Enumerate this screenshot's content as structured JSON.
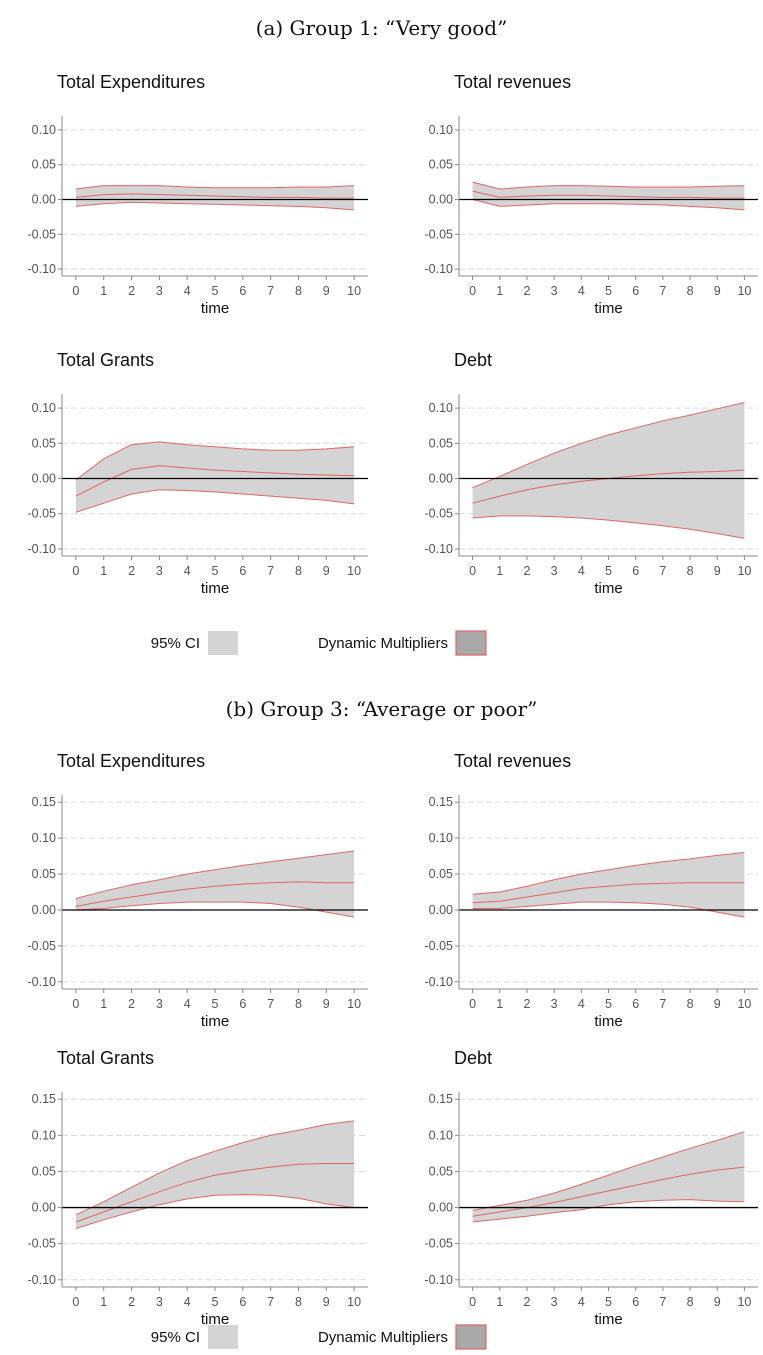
{
  "groups": [
    {
      "caption": "(a) Group 1: “Very good”",
      "legend": {
        "ci_label": "95% CI",
        "multiplier_label": "Dynamic Multipliers",
        "ci_fill": "#d4d4d4",
        "multiplier_fill": "#a9a9a9",
        "line_color": "#e06666"
      }
    },
    {
      "caption": "(b) Group 3: “Average or poor”",
      "legend": {
        "ci_label": "95% CI",
        "multiplier_label": "Dynamic Multipliers",
        "ci_fill": "#d4d4d4",
        "multiplier_fill": "#a9a9a9",
        "line_color": "#e06666"
      }
    }
  ],
  "chart_data": [
    {
      "type": "area",
      "group": 0,
      "title": "Total Expenditures",
      "xlabel": "time",
      "ylabel": "",
      "x": [
        0,
        1,
        2,
        3,
        4,
        5,
        6,
        7,
        8,
        9,
        10
      ],
      "yticks": [
        "0.10",
        "0.05",
        "0.00",
        "-0.05",
        "-0.10"
      ],
      "ylim": [
        -0.11,
        0.12
      ],
      "grid": true,
      "upper": [
        0.015,
        0.02,
        0.02,
        0.02,
        0.018,
        0.017,
        0.017,
        0.017,
        0.018,
        0.018,
        0.02
      ],
      "mean": [
        0.003,
        0.007,
        0.008,
        0.007,
        0.006,
        0.005,
        0.004,
        0.003,
        0.003,
        0.002,
        0.002
      ],
      "lower": [
        -0.01,
        -0.006,
        -0.004,
        -0.005,
        -0.006,
        -0.007,
        -0.008,
        -0.009,
        -0.01,
        -0.012,
        -0.015
      ]
    },
    {
      "type": "area",
      "group": 0,
      "title": "Total revenues",
      "xlabel": "time",
      "ylabel": "",
      "x": [
        0,
        1,
        2,
        3,
        4,
        5,
        6,
        7,
        8,
        9,
        10
      ],
      "yticks": [
        "0.10",
        "0.05",
        "0.00",
        "-0.05",
        "-0.10"
      ],
      "ylim": [
        -0.11,
        0.12
      ],
      "grid": true,
      "upper": [
        0.025,
        0.015,
        0.018,
        0.02,
        0.02,
        0.019,
        0.018,
        0.018,
        0.018,
        0.019,
        0.02
      ],
      "mean": [
        0.012,
        0.003,
        0.005,
        0.006,
        0.006,
        0.005,
        0.004,
        0.003,
        0.003,
        0.002,
        0.002
      ],
      "lower": [
        0.0,
        -0.01,
        -0.008,
        -0.006,
        -0.006,
        -0.006,
        -0.007,
        -0.008,
        -0.01,
        -0.012,
        -0.015
      ]
    },
    {
      "type": "area",
      "group": 0,
      "title": "Total Grants",
      "xlabel": "time",
      "ylabel": "",
      "x": [
        0,
        1,
        2,
        3,
        4,
        5,
        6,
        7,
        8,
        9,
        10
      ],
      "yticks": [
        "0.10",
        "0.05",
        "0.00",
        "-0.05",
        "-0.10"
      ],
      "ylim": [
        -0.11,
        0.12
      ],
      "grid": true,
      "upper": [
        -0.002,
        0.028,
        0.048,
        0.052,
        0.048,
        0.045,
        0.042,
        0.04,
        0.04,
        0.042,
        0.045
      ],
      "mean": [
        -0.025,
        -0.005,
        0.013,
        0.018,
        0.015,
        0.012,
        0.01,
        0.008,
        0.006,
        0.005,
        0.004
      ],
      "lower": [
        -0.048,
        -0.035,
        -0.022,
        -0.016,
        -0.017,
        -0.019,
        -0.022,
        -0.025,
        -0.028,
        -0.031,
        -0.036
      ]
    },
    {
      "type": "area",
      "group": 0,
      "title": "Debt",
      "xlabel": "time",
      "ylabel": "",
      "x": [
        0,
        1,
        2,
        3,
        4,
        5,
        6,
        7,
        8,
        9,
        10
      ],
      "yticks": [
        "0.10",
        "0.05",
        "0.00",
        "-0.05",
        "-0.10"
      ],
      "ylim": [
        -0.11,
        0.12
      ],
      "grid": true,
      "upper": [
        -0.013,
        0.003,
        0.02,
        0.036,
        0.05,
        0.062,
        0.072,
        0.082,
        0.09,
        0.099,
        0.108
      ],
      "mean": [
        -0.035,
        -0.025,
        -0.016,
        -0.009,
        -0.004,
        0.0,
        0.004,
        0.007,
        0.009,
        0.01,
        0.012
      ],
      "lower": [
        -0.056,
        -0.053,
        -0.053,
        -0.054,
        -0.056,
        -0.059,
        -0.063,
        -0.067,
        -0.072,
        -0.078,
        -0.085
      ]
    },
    {
      "type": "area",
      "group": 1,
      "title": "Total Expenditures",
      "xlabel": "time",
      "ylabel": "",
      "x": [
        0,
        1,
        2,
        3,
        4,
        5,
        6,
        7,
        8,
        9,
        10
      ],
      "yticks": [
        "0.15",
        "0.10",
        "0.05",
        "0.00",
        "-0.05",
        "-0.10"
      ],
      "ylim": [
        -0.11,
        0.16
      ],
      "grid": true,
      "upper": [
        0.016,
        0.026,
        0.035,
        0.042,
        0.05,
        0.056,
        0.062,
        0.067,
        0.072,
        0.077,
        0.082
      ],
      "mean": [
        0.005,
        0.012,
        0.018,
        0.024,
        0.029,
        0.033,
        0.036,
        0.038,
        0.039,
        0.038,
        0.038
      ],
      "lower": [
        0.0,
        0.002,
        0.006,
        0.009,
        0.011,
        0.011,
        0.011,
        0.009,
        0.004,
        -0.003,
        -0.01
      ]
    },
    {
      "type": "area",
      "group": 1,
      "title": "Total revenues",
      "xlabel": "time",
      "ylabel": "",
      "x": [
        0,
        1,
        2,
        3,
        4,
        5,
        6,
        7,
        8,
        9,
        10
      ],
      "yticks": [
        "0.15",
        "0.10",
        "0.05",
        "0.00",
        "-0.05",
        "-0.10"
      ],
      "ylim": [
        -0.11,
        0.16
      ],
      "grid": true,
      "upper": [
        0.022,
        0.025,
        0.033,
        0.042,
        0.05,
        0.056,
        0.062,
        0.067,
        0.071,
        0.076,
        0.08
      ],
      "mean": [
        0.01,
        0.012,
        0.018,
        0.024,
        0.03,
        0.033,
        0.036,
        0.037,
        0.038,
        0.038,
        0.038
      ],
      "lower": [
        0.002,
        0.002,
        0.005,
        0.008,
        0.011,
        0.011,
        0.01,
        0.008,
        0.004,
        -0.003,
        -0.01
      ]
    },
    {
      "type": "area",
      "group": 1,
      "title": "Total Grants",
      "xlabel": "time",
      "ylabel": "",
      "x": [
        0,
        1,
        2,
        3,
        4,
        5,
        6,
        7,
        8,
        9,
        10
      ],
      "yticks": [
        "0.15",
        "0.10",
        "0.05",
        "0.00",
        "-0.05",
        "-0.10"
      ],
      "ylim": [
        -0.11,
        0.16
      ],
      "grid": true,
      "upper": [
        -0.01,
        0.008,
        0.028,
        0.048,
        0.065,
        0.078,
        0.09,
        0.1,
        0.107,
        0.115,
        0.12
      ],
      "mean": [
        -0.02,
        -0.006,
        0.008,
        0.022,
        0.035,
        0.045,
        0.051,
        0.056,
        0.06,
        0.061,
        0.061
      ],
      "lower": [
        -0.029,
        -0.017,
        -0.006,
        0.004,
        0.012,
        0.017,
        0.018,
        0.017,
        0.013,
        0.005,
        0.0
      ]
    },
    {
      "type": "area",
      "group": 1,
      "title": "Debt",
      "xlabel": "time",
      "ylabel": "",
      "x": [
        0,
        1,
        2,
        3,
        4,
        5,
        6,
        7,
        8,
        9,
        10
      ],
      "yticks": [
        "0.15",
        "0.10",
        "0.05",
        "0.00",
        "-0.05",
        "-0.10"
      ],
      "ylim": [
        -0.11,
        0.16
      ],
      "grid": true,
      "upper": [
        -0.004,
        0.003,
        0.01,
        0.02,
        0.032,
        0.045,
        0.058,
        0.07,
        0.082,
        0.093,
        0.105
      ],
      "mean": [
        -0.012,
        -0.006,
        0.0,
        0.007,
        0.015,
        0.023,
        0.031,
        0.039,
        0.046,
        0.052,
        0.056
      ],
      "lower": [
        -0.02,
        -0.016,
        -0.012,
        -0.007,
        -0.003,
        0.004,
        0.008,
        0.01,
        0.011,
        0.009,
        0.008
      ]
    }
  ]
}
